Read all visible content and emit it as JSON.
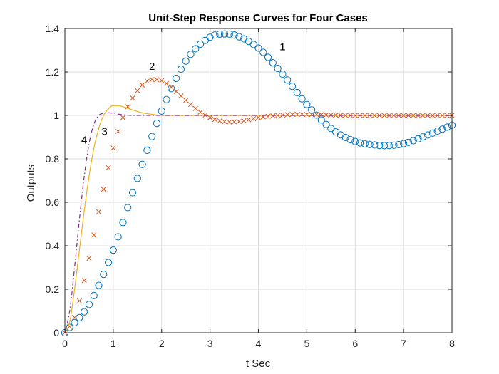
{
  "chart_data": {
    "type": "line",
    "title": "Unit-Step Response Curves for Four Cases",
    "xlabel": "t Sec",
    "ylabel": "Outputs",
    "xlim": [
      0,
      8
    ],
    "ylim": [
      0,
      1.4
    ],
    "xticks": [
      "0",
      "1",
      "2",
      "3",
      "4",
      "5",
      "6",
      "7",
      "8"
    ],
    "yticks": [
      "0",
      "0.2",
      "0.4",
      "0.6",
      "0.8",
      "1",
      "1.2",
      "1.4"
    ],
    "grid": true,
    "colors": {
      "c1": "#0072BD",
      "c2": "#D95319",
      "c3": "#EDB120",
      "c4": "#7E2F8E"
    },
    "annotations": [
      {
        "text": "1",
        "x": 4.5,
        "y": 1.3
      },
      {
        "text": "2",
        "x": 1.8,
        "y": 1.21
      },
      {
        "text": "3",
        "x": 0.82,
        "y": 0.91
      },
      {
        "text": "4",
        "x": 0.4,
        "y": 0.87
      }
    ],
    "series": [
      {
        "marker": "o",
        "x": [
          0,
          0.5,
          1.0,
          1.5,
          2.0,
          2.5,
          3.0,
          3.3,
          3.5,
          4.0,
          4.5,
          5.0,
          5.5,
          6.0,
          6.5,
          6.6,
          7.0,
          7.5,
          8.0
        ],
        "values": [
          0,
          0.13,
          0.38,
          0.71,
          1.02,
          1.25,
          1.36,
          1.375,
          1.37,
          1.31,
          1.19,
          1.05,
          0.94,
          0.88,
          0.862,
          0.861,
          0.87,
          0.91,
          0.955
        ]
      },
      {
        "marker": "x",
        "x": [
          0,
          0.2,
          0.4,
          0.6,
          0.8,
          1.0,
          1.2,
          1.4,
          1.6,
          1.8,
          2.0,
          2.2,
          2.4,
          2.6,
          2.8,
          3.0,
          3.2,
          3.4,
          3.6,
          3.8,
          4.0,
          4.4,
          4.8,
          5.2,
          5.6,
          6.0,
          7.0,
          8.0
        ],
        "values": [
          0,
          0.07,
          0.24,
          0.45,
          0.66,
          0.85,
          0.99,
          1.08,
          1.14,
          1.165,
          1.16,
          1.13,
          1.09,
          1.05,
          1.015,
          0.99,
          0.975,
          0.97,
          0.972,
          0.98,
          0.99,
          1.0,
          1.005,
          1.004,
          1.001,
          1.0,
          1.0,
          1.0
        ]
      },
      {
        "marker": "none",
        "x": [
          0,
          0.1,
          0.2,
          0.3,
          0.4,
          0.5,
          0.6,
          0.7,
          0.8,
          0.9,
          1.0,
          1.1,
          1.2,
          1.4,
          1.6,
          1.8,
          2.0,
          2.4,
          3.0,
          4.0,
          5.0,
          6.0,
          7.0,
          8.0
        ],
        "values": [
          0,
          0.05,
          0.2,
          0.38,
          0.56,
          0.72,
          0.85,
          0.94,
          1.0,
          1.03,
          1.045,
          1.045,
          1.04,
          1.025,
          1.012,
          1.005,
          1.0,
          1.0,
          1.0,
          1.0,
          1.0,
          1.0,
          1.0,
          1.0
        ]
      },
      {
        "marker": "none",
        "dash": "dashdot",
        "x": [
          0,
          0.1,
          0.2,
          0.3,
          0.4,
          0.5,
          0.6,
          0.7,
          0.8,
          0.9,
          1.0,
          1.1,
          1.2,
          1.4,
          1.6,
          2.0,
          3.0,
          4.0,
          5.0,
          6.0,
          7.0,
          8.0
        ],
        "values": [
          0,
          0.1,
          0.3,
          0.52,
          0.72,
          0.87,
          0.96,
          1.0,
          1.01,
          1.012,
          1.01,
          1.006,
          1.003,
          1.0,
          1.0,
          1.0,
          1.0,
          1.0,
          1.0,
          1.0,
          1.0,
          1.0
        ]
      }
    ]
  }
}
